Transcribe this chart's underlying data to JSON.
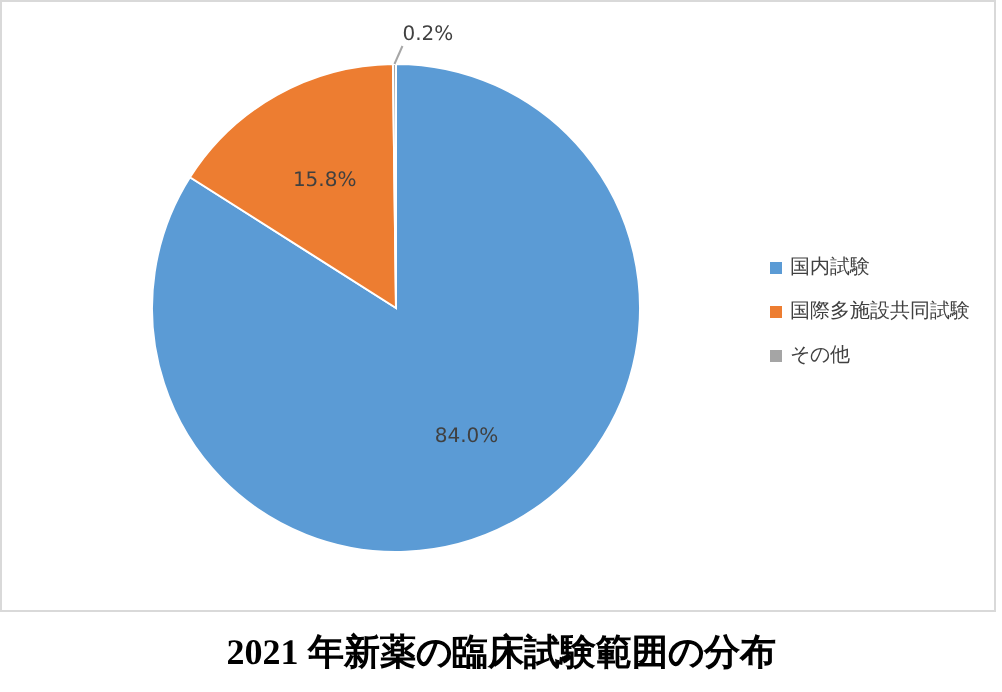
{
  "chart_data": {
    "type": "pie",
    "title": "2021 年新薬の臨床試験範囲の分布",
    "categories": [
      "国内試験",
      "国際多施設共同試験",
      "その他"
    ],
    "values": [
      84.0,
      15.8,
      0.2
    ],
    "value_labels": [
      "84.0%",
      "15.8%",
      "0.2%"
    ],
    "colors": [
      "#5b9bd5",
      "#ed7d31",
      "#a5a5a5"
    ],
    "legend": "right"
  }
}
